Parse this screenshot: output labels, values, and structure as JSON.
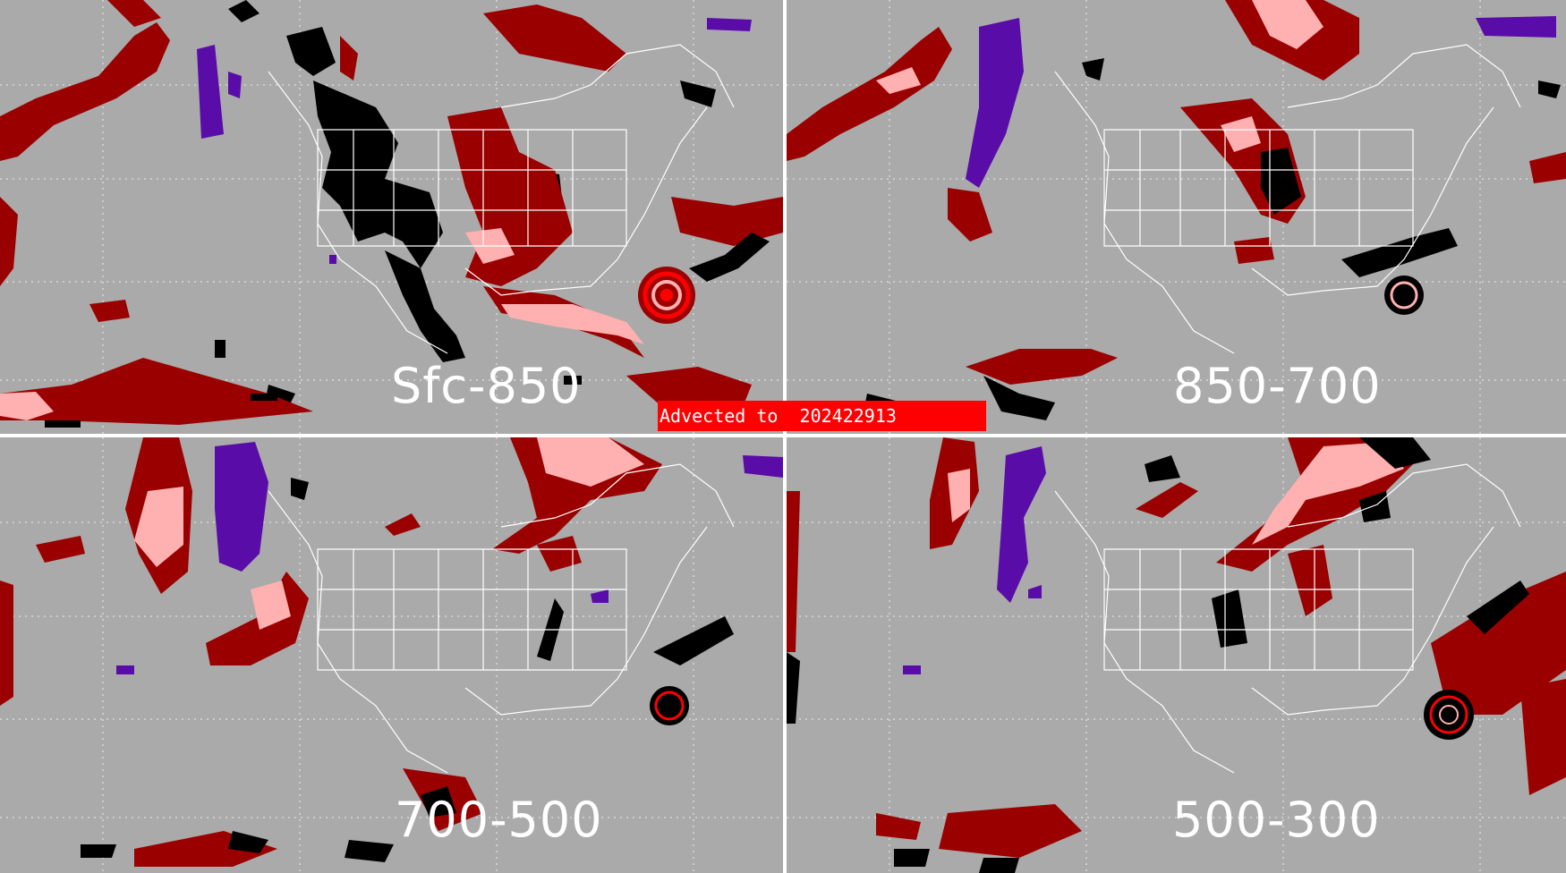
{
  "panels": {
    "top_left": {
      "label": "Sfc-850"
    },
    "top_right": {
      "label": "850-700"
    },
    "bottom_left": {
      "label": "700-500"
    },
    "bottom_right": {
      "label": "500-300"
    }
  },
  "banner": {
    "text": "Advected to  202422913"
  },
  "colors": {
    "background": "#aaaaaa",
    "dark_red": "#9a0000",
    "pink": "#ffb0b0",
    "bright_red": "#ff0000",
    "black": "#000000",
    "purple": "#5a0ca8",
    "boundaries": "#ffffff"
  }
}
